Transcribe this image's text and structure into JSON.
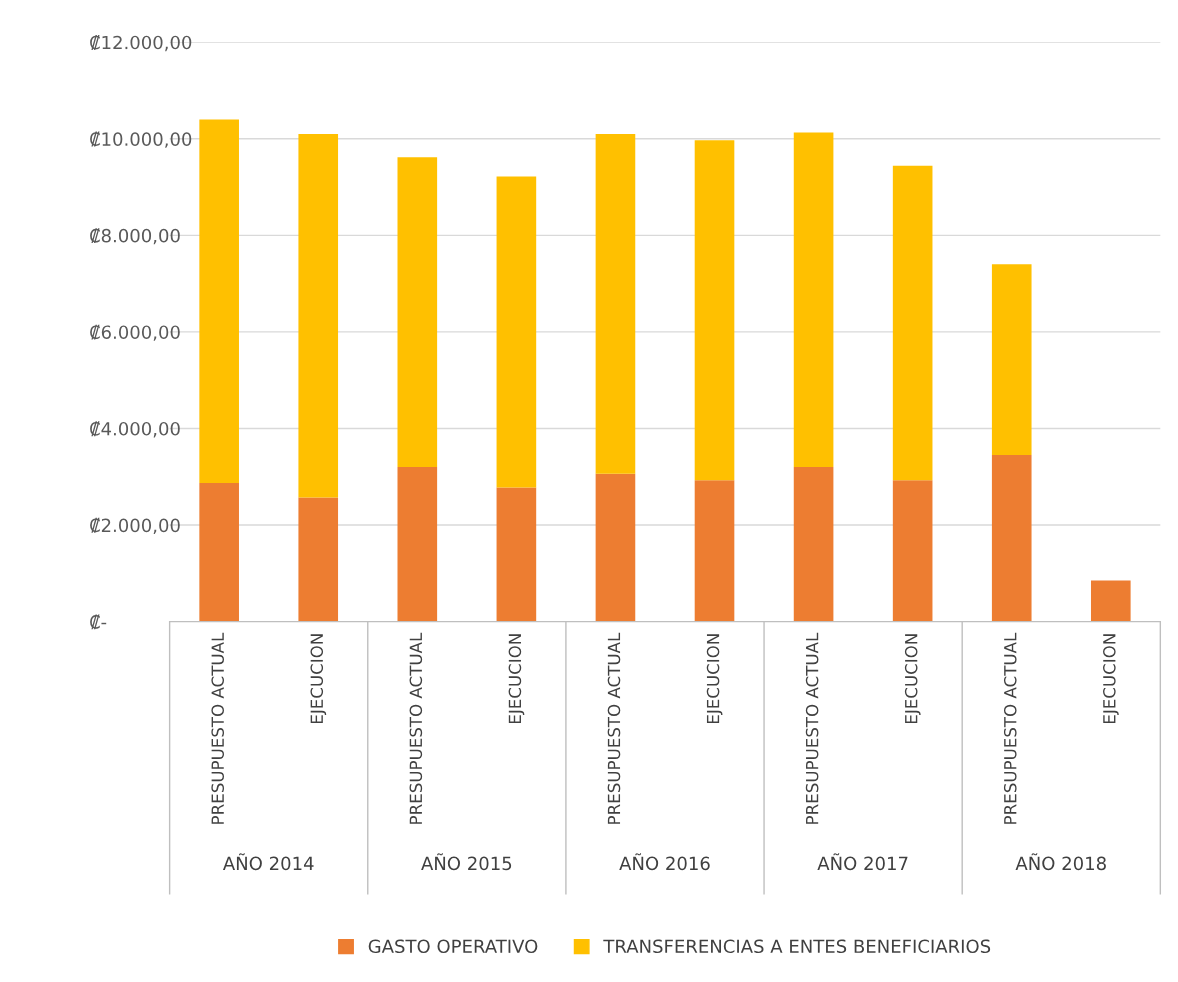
{
  "chart_data": {
    "type": "bar",
    "stacked": true,
    "categories": [
      "PRESUPUESTO ACTUAL",
      "EJECUCION",
      "PRESUPUESTO ACTUAL",
      "EJECUCION",
      "PRESUPUESTO ACTUAL",
      "EJECUCION",
      "PRESUPUESTO ACTUAL",
      "EJECUCION",
      "PRESUPUESTO ACTUAL",
      "EJECUCION"
    ],
    "annotations": [
      "AÑO 2014",
      "AÑO 2015",
      "AÑO 2016",
      "AÑO 2017",
      "AÑO 2018"
    ],
    "series": [
      {
        "name": "GASTO OPERATIVO",
        "color": "#ed7d31",
        "values": [
          2870,
          2570,
          3200,
          2780,
          3060,
          2930,
          3200,
          2930,
          3450,
          850
        ]
      },
      {
        "name": "TRANSFERENCIAS A ENTES BENEFICIARIOS",
        "color": "#ffc000",
        "values": [
          7530,
          7530,
          6420,
          6440,
          7040,
          7040,
          6930,
          6510,
          3950,
          0
        ]
      }
    ],
    "ylim": [
      0,
      12000
    ],
    "yticks": [
      {
        "value": 0,
        "label": "₡-"
      },
      {
        "value": 2000,
        "label": "₡2.000,00"
      },
      {
        "value": 4000,
        "label": "₡4.000,00"
      },
      {
        "value": 6000,
        "label": "₡6.000,00"
      },
      {
        "value": 8000,
        "label": "₡8.000,00"
      },
      {
        "value": 10000,
        "label": "₡10.000,00"
      },
      {
        "value": 12000,
        "label": "₡12.000,00"
      }
    ],
    "grid": "y",
    "legend": "bottom"
  }
}
